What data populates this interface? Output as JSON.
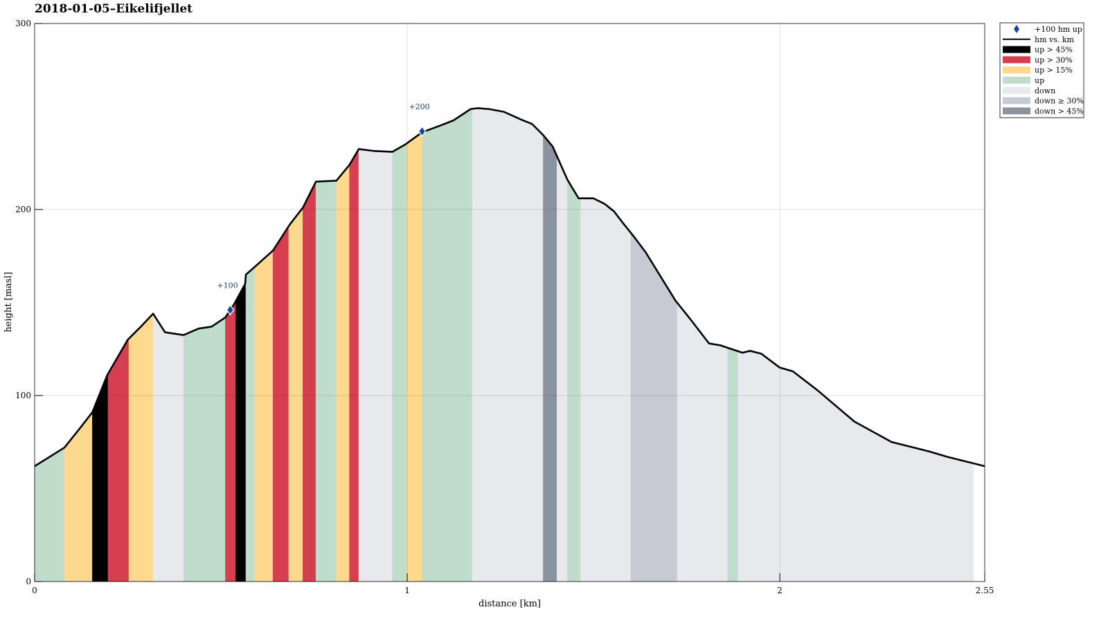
{
  "chart_data": {
    "type": "area",
    "title": "2018-01-05–Eikelifjellet",
    "xlabel": "distance [km]",
    "ylabel": "height [masl]",
    "xlim": [
      0,
      2.55
    ],
    "ylim": [
      0,
      300
    ],
    "xticks": [
      {
        "value": 0,
        "label": "0"
      },
      {
        "value": 1,
        "label": "1"
      },
      {
        "value": 2,
        "label": "2"
      },
      {
        "value": 2.55,
        "label": "2.55"
      }
    ],
    "yticks": [
      {
        "value": 0,
        "label": "0"
      },
      {
        "value": 100,
        "label": "100"
      },
      {
        "value": 200,
        "label": "200"
      },
      {
        "value": 300,
        "label": "300"
      }
    ],
    "grid": true,
    "legend_position": "outside-top-right",
    "profile": {
      "name": "hm vs. km",
      "color": "#000000",
      "points": [
        [
          0.0,
          62
        ],
        [
          0.08,
          72
        ],
        [
          0.12,
          82
        ],
        [
          0.155,
          91
        ],
        [
          0.195,
          111
        ],
        [
          0.25,
          130
        ],
        [
          0.285,
          137
        ],
        [
          0.318,
          144
        ],
        [
          0.35,
          134
        ],
        [
          0.4,
          132.5
        ],
        [
          0.44,
          136
        ],
        [
          0.475,
          137
        ],
        [
          0.512,
          142
        ],
        [
          0.535,
          149
        ],
        [
          0.565,
          160
        ],
        [
          0.567,
          165
        ],
        [
          0.59,
          169
        ],
        [
          0.64,
          178
        ],
        [
          0.685,
          192
        ],
        [
          0.72,
          201
        ],
        [
          0.755,
          215
        ],
        [
          0.81,
          215.5
        ],
        [
          0.845,
          224
        ],
        [
          0.87,
          232.5
        ],
        [
          0.91,
          231.5
        ],
        [
          0.96,
          231
        ],
        [
          0.995,
          235
        ],
        [
          1.04,
          241.5
        ],
        [
          1.06,
          243
        ],
        [
          1.1,
          246
        ],
        [
          1.125,
          248
        ],
        [
          1.17,
          254
        ],
        [
          1.19,
          254.5
        ],
        [
          1.22,
          254
        ],
        [
          1.26,
          252.5
        ],
        [
          1.31,
          248
        ],
        [
          1.335,
          246
        ],
        [
          1.365,
          240
        ],
        [
          1.39,
          234
        ],
        [
          1.43,
          216
        ],
        [
          1.46,
          206
        ],
        [
          1.5,
          206
        ],
        [
          1.53,
          203
        ],
        [
          1.555,
          199
        ],
        [
          1.58,
          192.5
        ],
        [
          1.61,
          185
        ],
        [
          1.64,
          177
        ],
        [
          1.68,
          164
        ],
        [
          1.72,
          151
        ],
        [
          1.76,
          141
        ],
        [
          1.81,
          128
        ],
        [
          1.84,
          127
        ],
        [
          1.87,
          125
        ],
        [
          1.9,
          123
        ],
        [
          1.92,
          124
        ],
        [
          1.95,
          122.5
        ],
        [
          2.0,
          115
        ],
        [
          2.035,
          113
        ],
        [
          2.1,
          103
        ],
        [
          2.2,
          86
        ],
        [
          2.3,
          75
        ],
        [
          2.4,
          70
        ],
        [
          2.45,
          67
        ],
        [
          2.5,
          64.5
        ],
        [
          2.55,
          62
        ]
      ]
    },
    "categories": {
      "up45": {
        "label": "up > 45%",
        "color": "#000000"
      },
      "up30": {
        "label": "up > 30%",
        "color": "#d73e50"
      },
      "up15": {
        "label": "up > 15%",
        "color": "#fdd98d"
      },
      "up": {
        "label": "up",
        "color": "#c0ddcc"
      },
      "down": {
        "label": "down",
        "color": "#e8e9ed"
      },
      "down30": {
        "label": "down ≥ 30%",
        "color": "#c7cad2"
      },
      "down45": {
        "label": "down > 45%",
        "color": "#8c93a0"
      }
    },
    "segments": [
      {
        "from": 0.0,
        "to": 0.08,
        "category": "up"
      },
      {
        "from": 0.08,
        "to": 0.155,
        "category": "up15"
      },
      {
        "from": 0.155,
        "to": 0.197,
        "category": "up45"
      },
      {
        "from": 0.197,
        "to": 0.253,
        "category": "up30"
      },
      {
        "from": 0.253,
        "to": 0.318,
        "category": "up15"
      },
      {
        "from": 0.318,
        "to": 0.4,
        "category": "down"
      },
      {
        "from": 0.4,
        "to": 0.512,
        "category": "up"
      },
      {
        "from": 0.512,
        "to": 0.54,
        "category": "up30"
      },
      {
        "from": 0.54,
        "to": 0.567,
        "category": "up45"
      },
      {
        "from": 0.567,
        "to": 0.59,
        "category": "up"
      },
      {
        "from": 0.59,
        "to": 0.64,
        "category": "up15"
      },
      {
        "from": 0.64,
        "to": 0.682,
        "category": "up30"
      },
      {
        "from": 0.682,
        "to": 0.72,
        "category": "up15"
      },
      {
        "from": 0.72,
        "to": 0.755,
        "category": "up30"
      },
      {
        "from": 0.755,
        "to": 0.81,
        "category": "up"
      },
      {
        "from": 0.81,
        "to": 0.845,
        "category": "up15"
      },
      {
        "from": 0.845,
        "to": 0.87,
        "category": "up30"
      },
      {
        "from": 0.87,
        "to": 0.96,
        "category": "down"
      },
      {
        "from": 0.96,
        "to": 0.998,
        "category": "up"
      },
      {
        "from": 0.998,
        "to": 1.04,
        "category": "up15"
      },
      {
        "from": 1.04,
        "to": 1.175,
        "category": "up"
      },
      {
        "from": 1.175,
        "to": 1.365,
        "category": "down"
      },
      {
        "from": 1.365,
        "to": 1.402,
        "category": "down45"
      },
      {
        "from": 1.402,
        "to": 1.43,
        "category": "down"
      },
      {
        "from": 1.43,
        "to": 1.466,
        "category": "up"
      },
      {
        "from": 1.466,
        "to": 1.6,
        "category": "down"
      },
      {
        "from": 1.6,
        "to": 1.725,
        "category": "down30"
      },
      {
        "from": 1.725,
        "to": 1.86,
        "category": "down"
      },
      {
        "from": 1.86,
        "to": 1.888,
        "category": "up"
      },
      {
        "from": 1.888,
        "to": 2.52,
        "category": "down"
      }
    ],
    "markers": {
      "name": "+100 hm up",
      "color": "#1446a0",
      "points": [
        {
          "x": 0.525,
          "y": 146,
          "label": "+100"
        },
        {
          "x": 1.04,
          "y": 242,
          "label": "+200"
        }
      ]
    },
    "legend": [
      {
        "label": "+100 hm up",
        "kind": "marker",
        "color": "#1446a0"
      },
      {
        "label": "hm vs. km",
        "kind": "line",
        "color": "#000000"
      },
      {
        "label": "up > 45%",
        "kind": "patch",
        "color": "#000000"
      },
      {
        "label": "up > 30%",
        "kind": "patch",
        "color": "#d73e50"
      },
      {
        "label": "up > 15%",
        "kind": "patch",
        "color": "#fdd98d"
      },
      {
        "label": "up",
        "kind": "patch",
        "color": "#c0ddcc"
      },
      {
        "label": "down",
        "kind": "patch",
        "color": "#e8e9ed"
      },
      {
        "label": "down ≥ 30%",
        "kind": "patch",
        "color": "#c7cad2"
      },
      {
        "label": "down > 45%",
        "kind": "patch",
        "color": "#8c93a0"
      }
    ]
  }
}
